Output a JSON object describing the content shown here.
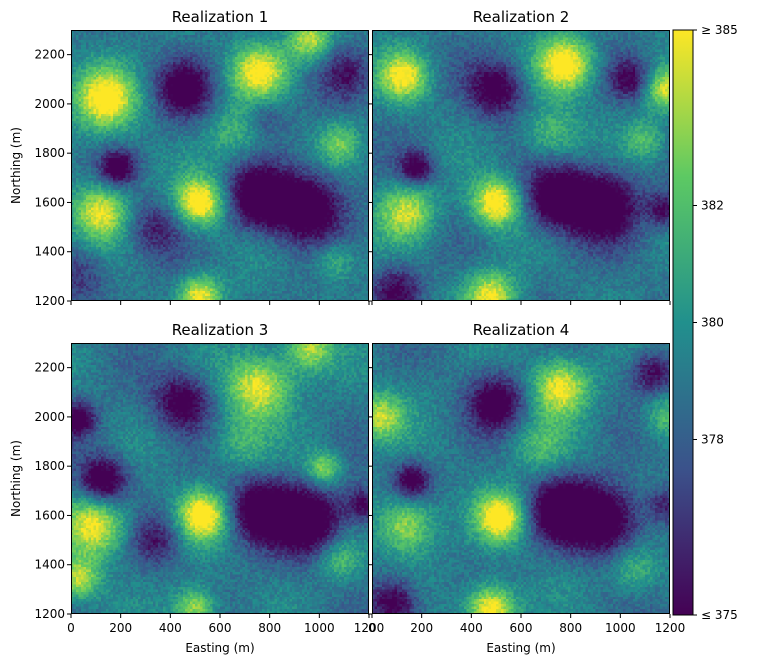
{
  "chart_data": {
    "type": "heatmap",
    "colormap": "viridis",
    "colorbar": {
      "vmin": 375,
      "vmax": 385,
      "ticks": [
        {
          "value": 375,
          "label": "≤  375"
        },
        {
          "value": 378,
          "label": "378"
        },
        {
          "value": 380,
          "label": "380"
        },
        {
          "value": 382,
          "label": "382"
        },
        {
          "value": 385,
          "label": "≥  385"
        }
      ],
      "colors": [
        "#440154",
        "#3b528b",
        "#21908d",
        "#5dc963",
        "#fde725"
      ]
    },
    "xlim": [
      0,
      1200
    ],
    "ylim": [
      1200,
      2300
    ],
    "xticks": [
      "0",
      "200",
      "400",
      "600",
      "800",
      "1000",
      "1200"
    ],
    "yticks": [
      "1200",
      "1400",
      "1600",
      "1800",
      "2000",
      "2200"
    ],
    "xlabel": "Easting (m)",
    "ylabel": "Northing (m)",
    "panels": [
      {
        "title": "Realization 1",
        "base": 379,
        "features": [
          {
            "x": 140,
            "y": 2020,
            "r": 90,
            "a": 6.5
          },
          {
            "x": 760,
            "y": 2130,
            "r": 80,
            "a": 6
          },
          {
            "x": 960,
            "y": 2260,
            "r": 60,
            "a": 5
          },
          {
            "x": 120,
            "y": 1560,
            "r": 80,
            "a": 6
          },
          {
            "x": 520,
            "y": 1600,
            "r": 70,
            "a": 7
          },
          {
            "x": 520,
            "y": 1220,
            "r": 60,
            "a": 6
          },
          {
            "x": 1060,
            "y": 1360,
            "r": 60,
            "a": 3
          },
          {
            "x": 1080,
            "y": 1840,
            "r": 60,
            "a": 3.5
          },
          {
            "x": 660,
            "y": 1880,
            "r": 80,
            "a": 2.5
          },
          {
            "x": 460,
            "y": 2060,
            "r": 80,
            "a": -5
          },
          {
            "x": 760,
            "y": 1620,
            "r": 90,
            "a": -6
          },
          {
            "x": 960,
            "y": 1580,
            "r": 100,
            "a": -6
          },
          {
            "x": 190,
            "y": 1740,
            "r": 50,
            "a": -5
          },
          {
            "x": 340,
            "y": 1500,
            "r": 80,
            "a": -3
          },
          {
            "x": 40,
            "y": 1300,
            "r": 80,
            "a": -2.5
          },
          {
            "x": 1110,
            "y": 2120,
            "r": 70,
            "a": -3
          },
          {
            "x": 780,
            "y": 1950,
            "r": 60,
            "a": -2
          }
        ]
      },
      {
        "title": "Realization 2",
        "base": 379,
        "features": [
          {
            "x": 130,
            "y": 2110,
            "r": 70,
            "a": 6
          },
          {
            "x": 780,
            "y": 2160,
            "r": 80,
            "a": 7
          },
          {
            "x": 1180,
            "y": 2060,
            "r": 60,
            "a": 5
          },
          {
            "x": 140,
            "y": 1560,
            "r": 80,
            "a": 5
          },
          {
            "x": 500,
            "y": 1600,
            "r": 70,
            "a": 7
          },
          {
            "x": 480,
            "y": 1220,
            "r": 70,
            "a": 6
          },
          {
            "x": 720,
            "y": 1880,
            "r": 80,
            "a": 3
          },
          {
            "x": 1100,
            "y": 1850,
            "r": 60,
            "a": 3
          },
          {
            "x": 500,
            "y": 2060,
            "r": 80,
            "a": -5
          },
          {
            "x": 740,
            "y": 1620,
            "r": 90,
            "a": -6
          },
          {
            "x": 930,
            "y": 1590,
            "r": 100,
            "a": -6
          },
          {
            "x": 180,
            "y": 1740,
            "r": 50,
            "a": -5
          },
          {
            "x": 100,
            "y": 1240,
            "r": 70,
            "a": -4
          },
          {
            "x": 1040,
            "y": 2100,
            "r": 60,
            "a": -4
          },
          {
            "x": 1180,
            "y": 1570,
            "r": 50,
            "a": -4
          }
        ]
      },
      {
        "title": "Realization 3",
        "base": 379,
        "features": [
          {
            "x": 760,
            "y": 2120,
            "r": 90,
            "a": 6
          },
          {
            "x": 960,
            "y": 2280,
            "r": 70,
            "a": 5
          },
          {
            "x": 100,
            "y": 1560,
            "r": 90,
            "a": 6
          },
          {
            "x": 530,
            "y": 1600,
            "r": 70,
            "a": 7
          },
          {
            "x": 500,
            "y": 1220,
            "r": 60,
            "a": 5
          },
          {
            "x": 30,
            "y": 1340,
            "r": 60,
            "a": 5
          },
          {
            "x": 1020,
            "y": 1790,
            "r": 50,
            "a": 4.5
          },
          {
            "x": 680,
            "y": 1900,
            "r": 80,
            "a": 2.5
          },
          {
            "x": 1080,
            "y": 1420,
            "r": 60,
            "a": 3
          },
          {
            "x": 450,
            "y": 2060,
            "r": 80,
            "a": -5
          },
          {
            "x": 760,
            "y": 1620,
            "r": 90,
            "a": -6
          },
          {
            "x": 960,
            "y": 1580,
            "r": 100,
            "a": -6
          },
          {
            "x": 130,
            "y": 1740,
            "r": 70,
            "a": -6
          },
          {
            "x": 30,
            "y": 1990,
            "r": 50,
            "a": -5
          },
          {
            "x": 1180,
            "y": 1640,
            "r": 50,
            "a": -4
          },
          {
            "x": 340,
            "y": 1500,
            "r": 70,
            "a": -3
          }
        ]
      },
      {
        "title": "Realization 4",
        "base": 379,
        "features": [
          {
            "x": 30,
            "y": 2000,
            "r": 70,
            "a": 5
          },
          {
            "x": 760,
            "y": 2120,
            "r": 80,
            "a": 6
          },
          {
            "x": 140,
            "y": 1560,
            "r": 80,
            "a": 5
          },
          {
            "x": 520,
            "y": 1590,
            "r": 70,
            "a": 7
          },
          {
            "x": 480,
            "y": 1220,
            "r": 70,
            "a": 7
          },
          {
            "x": 1180,
            "y": 2000,
            "r": 60,
            "a": 3
          },
          {
            "x": 1060,
            "y": 1380,
            "r": 70,
            "a": 3
          },
          {
            "x": 680,
            "y": 1880,
            "r": 80,
            "a": 2.5
          },
          {
            "x": 500,
            "y": 2060,
            "r": 80,
            "a": -5
          },
          {
            "x": 760,
            "y": 1620,
            "r": 90,
            "a": -6
          },
          {
            "x": 940,
            "y": 1580,
            "r": 100,
            "a": -6
          },
          {
            "x": 160,
            "y": 1740,
            "r": 50,
            "a": -5
          },
          {
            "x": 90,
            "y": 1240,
            "r": 70,
            "a": -5
          },
          {
            "x": 1130,
            "y": 2180,
            "r": 60,
            "a": -4
          },
          {
            "x": 1180,
            "y": 1640,
            "r": 50,
            "a": -3
          }
        ]
      }
    ]
  }
}
